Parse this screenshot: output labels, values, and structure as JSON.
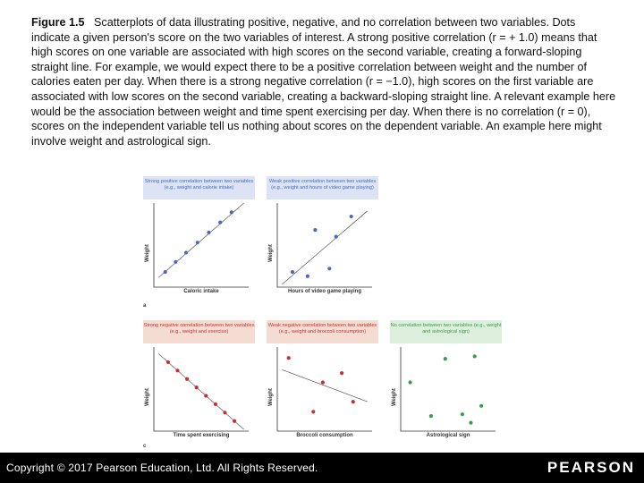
{
  "caption": {
    "label": "Figure 1.5",
    "text": "Scatterplots of data illustrating positive, negative, and no correlation between two variables. Dots indicate a given person's score on the two variables of interest. A strong positive correlation (r = + 1.0) means that high scores on one variable are associated with high scores on the second variable, creating a forward-sloping straight line. For example, we would expect there to be a positive correlation between weight and the number of calories eaten per day. When there is a strong negative correlation (r = −1.0), high scores on the first variable are associated with low scores on the second variable, creating a backward-sloping straight line. A relevant example here would be the association between weight and time spent exercising per day. When there is no correlation (r = 0), scores on the independent variable tell us nothing about scores on the dependent variable. An example here might involve weight and astrological sign."
  },
  "row_labels": {
    "a": "a",
    "c": "c"
  },
  "colors": {
    "blue": "#4a69c4",
    "red": "#cc2e2e",
    "green": "#3a9c48",
    "blue_bg": "#dbe3f4",
    "red_bg": "#f5dcd3",
    "green_bg": "#dcefdc"
  },
  "chart_data": [
    {
      "type": "scatter",
      "title": "Strong positive correlation between two variables (e.g., weight and calorie intake)",
      "xlabel": "Caloric intake",
      "ylabel": "Weight",
      "xlim": [
        0,
        10
      ],
      "ylim": [
        0,
        10
      ],
      "trendline": true,
      "points": [
        [
          1.2,
          1.8
        ],
        [
          2.3,
          3.0
        ],
        [
          3.4,
          4.1
        ],
        [
          4.6,
          5.3
        ],
        [
          5.8,
          6.5
        ],
        [
          7.0,
          7.7
        ],
        [
          8.2,
          8.9
        ]
      ]
    },
    {
      "type": "scatter",
      "title": "Weak positive correlation between two variables (e.g., weight and hours of video game playing)",
      "xlabel": "Hours of video game playing",
      "ylabel": "Weight",
      "xlim": [
        0,
        10
      ],
      "ylim": [
        0,
        10
      ],
      "trendline": true,
      "points": [
        [
          1.6,
          1.8
        ],
        [
          3.2,
          1.3
        ],
        [
          4.0,
          6.8
        ],
        [
          5.5,
          2.2
        ],
        [
          6.2,
          6.0
        ],
        [
          7.8,
          8.4
        ]
      ]
    },
    {
      "type": "scatter",
      "title": "Strong negative correlation between two variables (e.g., weight and exercise)",
      "xlabel": "Time spent exercising",
      "ylabel": "Weight",
      "xlim": [
        0,
        10
      ],
      "ylim": [
        0,
        10
      ],
      "trendline": true,
      "points": [
        [
          1.5,
          8.2
        ],
        [
          2.5,
          7.2
        ],
        [
          3.5,
          6.2
        ],
        [
          4.5,
          5.2
        ],
        [
          5.5,
          4.2
        ],
        [
          6.5,
          3.2
        ],
        [
          7.5,
          2.2
        ],
        [
          8.5,
          1.2
        ]
      ]
    },
    {
      "type": "scatter",
      "title": "Weak negative correlation between two variables (e.g., weight and broccoli consumption)",
      "xlabel": "Broccoli consumption",
      "ylabel": "Weight",
      "xlim": [
        0,
        10
      ],
      "ylim": [
        0,
        10
      ],
      "trendline": true,
      "points": [
        [
          1.2,
          8.7
        ],
        [
          4.8,
          5.8
        ],
        [
          3.8,
          2.3
        ],
        [
          6.8,
          6.9
        ],
        [
          8.0,
          3.5
        ]
      ]
    },
    {
      "type": "scatter",
      "title": "No correlation between two variables (e.g., weight and astrological sign)",
      "xlabel": "Astrological sign",
      "ylabel": "Weight",
      "xlim": [
        0,
        10
      ],
      "ylim": [
        0,
        10
      ],
      "trendline": false,
      "points": [
        [
          1.0,
          5.8
        ],
        [
          3.2,
          1.8
        ],
        [
          4.7,
          8.6
        ],
        [
          6.5,
          2.0
        ],
        [
          7.4,
          1.0
        ],
        [
          7.8,
          8.9
        ],
        [
          8.5,
          3.0
        ]
      ]
    }
  ],
  "footer": {
    "copyright": "Copyright © 2017 Pearson Education, Ltd. All Rights Reserved.",
    "logo": "PEARSON"
  }
}
